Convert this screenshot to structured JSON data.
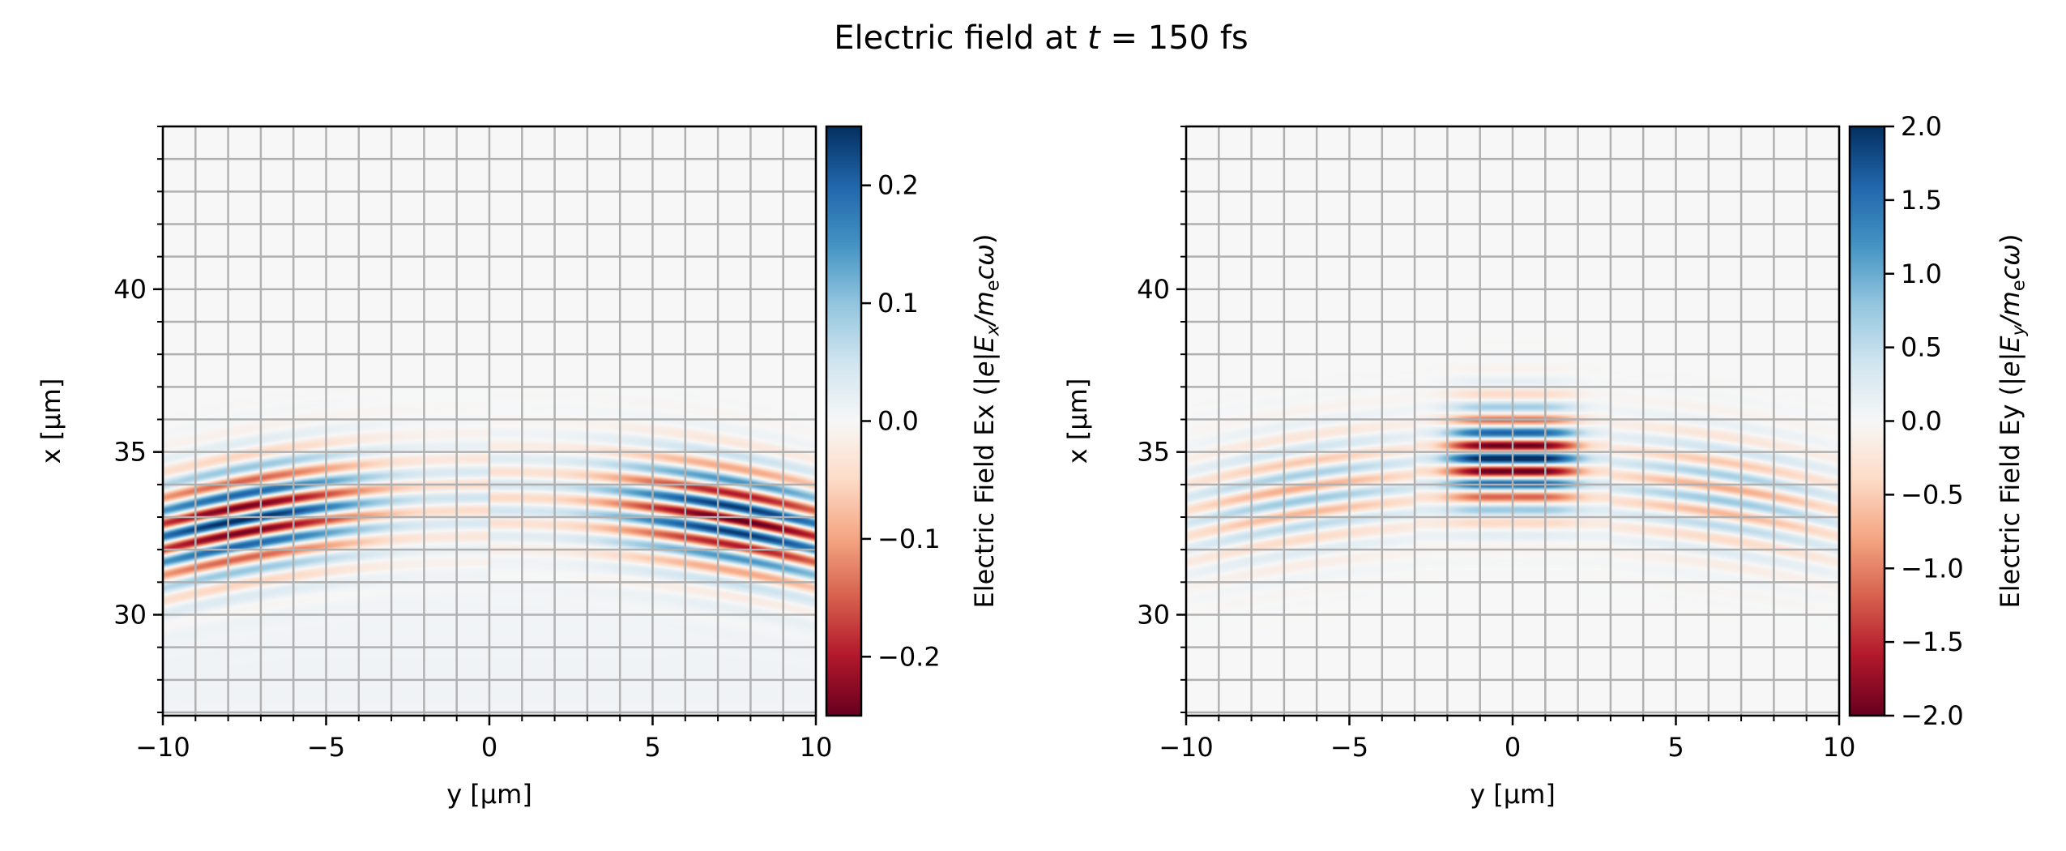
{
  "figure": {
    "title_segments": [
      {
        "t": "Electric field at ",
        "i": false
      },
      {
        "t": "t",
        "i": true
      },
      {
        "t": " = 150 fs",
        "i": false
      }
    ]
  },
  "chart_data": [
    {
      "type": "heatmap",
      "field": "Ex",
      "colormap": "RdBu",
      "xlabel": "y [µm]",
      "ylabel": "x [µm]",
      "xlim": [
        -10,
        10
      ],
      "ylim": [
        26.9,
        45
      ],
      "xticks": [
        -10,
        -5,
        0,
        5,
        10
      ],
      "xtick_labels": [
        "−10",
        "−5",
        "0",
        "5",
        "10"
      ],
      "yticks": [
        30,
        35,
        40
      ],
      "ytick_labels": [
        "30",
        "35",
        "40"
      ],
      "grid": true,
      "grid_step": 1,
      "colorbar": {
        "vmin": -0.25,
        "vmax": 0.25,
        "ticks": [
          -0.2,
          -0.1,
          0.0,
          0.1,
          0.2
        ],
        "tick_labels": [
          "−0.2",
          "−0.1",
          "0.0",
          "0.1",
          "0.2"
        ],
        "label_segments": [
          {
            "t": "Electric Field Ex (|",
            "i": false
          },
          {
            "t": "e",
            "i": true
          },
          {
            "t": "|",
            "i": false
          },
          {
            "t": "E",
            "i": true
          },
          {
            "t": "x",
            "i": true,
            "sub": true
          },
          {
            "t": "/",
            "i": true
          },
          {
            "t": "m",
            "i": true
          },
          {
            "t": "e",
            "i": false,
            "sub": true
          },
          {
            "t": "cω",
            "i": true
          },
          {
            "t": ")",
            "i": false
          }
        ]
      }
    },
    {
      "type": "heatmap",
      "field": "Ey",
      "colormap": "RdBu",
      "xlabel": "y [µm]",
      "ylabel": "x [µm]",
      "xlim": [
        -10,
        10
      ],
      "ylim": [
        26.9,
        45
      ],
      "xticks": [
        -10,
        -5,
        0,
        5,
        10
      ],
      "xtick_labels": [
        "−10",
        "−5",
        "0",
        "5",
        "10"
      ],
      "yticks": [
        30,
        35,
        40
      ],
      "ytick_labels": [
        "30",
        "35",
        "40"
      ],
      "grid": true,
      "grid_step": 1,
      "colorbar": {
        "vmin": -2.0,
        "vmax": 2.0,
        "ticks": [
          -2.0,
          -1.5,
          -1.0,
          -0.5,
          0.0,
          0.5,
          1.0,
          1.5,
          2.0
        ],
        "tick_labels": [
          "−2.0",
          "−1.5",
          "−1.0",
          "−0.5",
          "0.0",
          "0.5",
          "1.0",
          "1.5",
          "2.0"
        ],
        "label_segments": [
          {
            "t": "Electric Field Ey (|",
            "i": false
          },
          {
            "t": "e",
            "i": true
          },
          {
            "t": "|",
            "i": false
          },
          {
            "t": "E",
            "i": true
          },
          {
            "t": "y",
            "i": true,
            "sub": true
          },
          {
            "t": "/",
            "i": true
          },
          {
            "t": "m",
            "i": true
          },
          {
            "t": "e",
            "i": false,
            "sub": true
          },
          {
            "t": "cω",
            "i": true
          },
          {
            "t": ")",
            "i": false
          }
        ]
      }
    }
  ]
}
